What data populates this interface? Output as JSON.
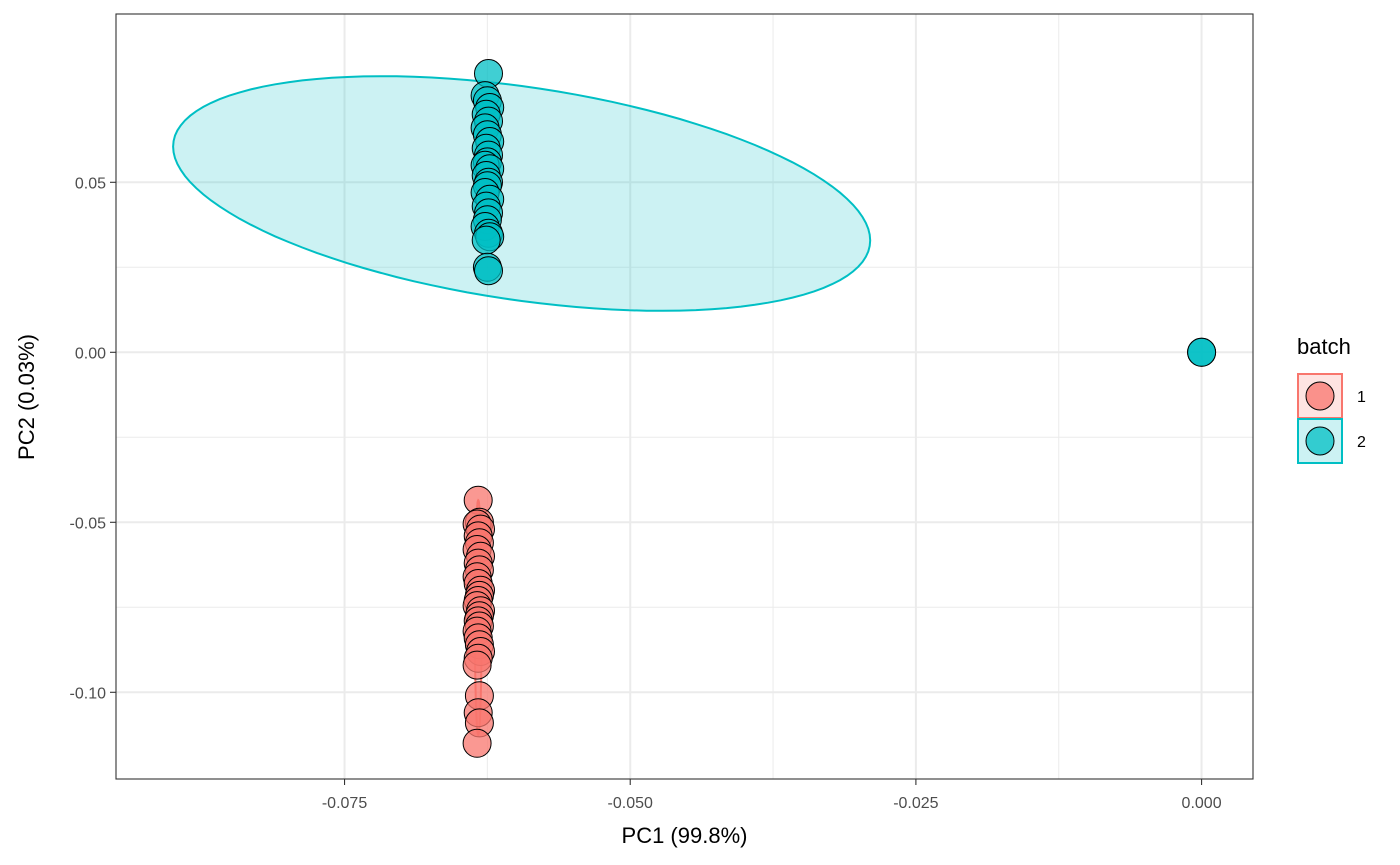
{
  "chart_data": {
    "type": "scatter",
    "title": "",
    "xlabel": "PC1 (99.8%)",
    "ylabel": "PC2 (0.03%)",
    "xlim": [
      -0.095,
      0.0045
    ],
    "ylim": [
      -0.1255,
      0.0995
    ],
    "x_ticks": [
      -0.075,
      -0.05,
      -0.025,
      0.0
    ],
    "x_tick_labels": [
      "-0.075",
      "-0.050",
      "-0.025",
      "0.000"
    ],
    "y_ticks": [
      -0.1,
      -0.05,
      0.0,
      0.05
    ],
    "y_tick_labels": [
      "-0.10",
      "-0.05",
      "0.00",
      "0.05"
    ],
    "grid": true,
    "legend": {
      "title": "batch",
      "placement": "right"
    },
    "colors": {
      "1": "#F8766D",
      "2": "#00BFC4"
    },
    "series": [
      {
        "name": "1",
        "color": "#F8766D",
        "x": [
          -0.0633,
          -0.0632,
          -0.0634,
          -0.0631,
          -0.0633,
          -0.0632,
          -0.0634,
          -0.0631,
          -0.0633,
          -0.0632,
          -0.0634,
          -0.0633,
          -0.0631,
          -0.0632,
          -0.0633,
          -0.0634,
          -0.0631,
          -0.0632,
          -0.0633,
          -0.0632,
          -0.0634,
          -0.0633,
          -0.0632,
          -0.0631,
          -0.0633,
          -0.0634,
          -0.0632,
          -0.0633,
          -0.0632,
          -0.0634
        ],
        "y": [
          -0.0435,
          -0.05,
          -0.0505,
          -0.052,
          -0.054,
          -0.056,
          -0.058,
          -0.06,
          -0.062,
          -0.064,
          -0.066,
          -0.068,
          -0.07,
          -0.0715,
          -0.073,
          -0.0745,
          -0.076,
          -0.0775,
          -0.079,
          -0.0805,
          -0.082,
          -0.084,
          -0.086,
          -0.088,
          -0.09,
          -0.092,
          -0.101,
          -0.106,
          -0.109,
          -0.115
        ]
      },
      {
        "name": "2",
        "color": "#00BFC4",
        "x": [
          -0.0624,
          -0.0627,
          -0.0625,
          -0.0623,
          -0.0626,
          -0.0624,
          -0.0627,
          -0.0625,
          -0.0623,
          -0.0626,
          -0.0624,
          -0.0625,
          -0.0627,
          -0.0623,
          -0.0626,
          -0.0624,
          -0.0625,
          -0.0627,
          -0.0623,
          -0.0626,
          -0.0624,
          -0.0625,
          -0.0627,
          -0.0624,
          -0.0623,
          -0.0626,
          -0.0625,
          -0.0624,
          0.0,
          0.0
        ],
        "y": [
          0.082,
          0.0755,
          0.074,
          0.072,
          0.07,
          0.068,
          0.066,
          0.064,
          0.062,
          0.06,
          0.058,
          0.056,
          0.055,
          0.054,
          0.052,
          0.05,
          0.049,
          0.047,
          0.045,
          0.043,
          0.041,
          0.039,
          0.037,
          0.035,
          0.034,
          0.033,
          0.025,
          0.024,
          0.0,
          0.0
        ]
      }
    ],
    "ellipses": [
      {
        "series": "2",
        "center": [
          -0.0595,
          0.0467
        ],
        "x_semi_axis": 0.0305,
        "y_semi_axis": 0.0345,
        "tilt_fraction": 0.4
      },
      {
        "series": "1",
        "center": [
          -0.0633,
          -0.078
        ],
        "x_semi_axis": 0.0003,
        "y_semi_axis": 0.0345,
        "tilt_fraction": 0.0
      }
    ]
  }
}
